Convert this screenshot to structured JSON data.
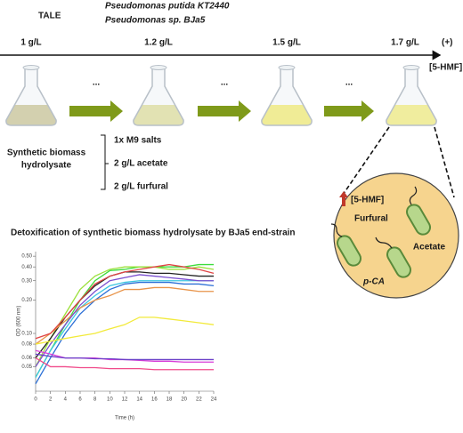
{
  "strains": {
    "tale": "TALE",
    "strain_1": "Pseudomonas putida KT2440",
    "strain_2": "Pseudomonas sp. BJa5"
  },
  "timeline": {
    "concentrations": [
      "1 g/L",
      "1.2 g/L",
      "1.5 g/L",
      "1.7 g/L"
    ],
    "plus": "(+)",
    "hmf": "[5-HMF]",
    "steps": [
      "...",
      "...",
      "..."
    ]
  },
  "medium": {
    "name_lines": [
      "Synthetic biomass",
      "hydrolysate"
    ],
    "components": [
      "1x M9 salts",
      "2 g/L acetate",
      "2 g/L furfural"
    ]
  },
  "cell_zoom": {
    "hmf": "[5-HMF]",
    "furfural": "Furfural",
    "acetate": "Acetate",
    "pca": "p-CA"
  },
  "chart_data": {
    "type": "line",
    "title": "Detoxification of synthetic biomass hydrolysate by BJa5 end-strain",
    "x_label": "Time (h)",
    "y_label": "OD (600 nm)",
    "log_y": true,
    "x": [
      0,
      2,
      4,
      6,
      8,
      10,
      12,
      14,
      16,
      18,
      20,
      22,
      24
    ],
    "xlim": [
      0,
      24
    ],
    "xticks": [
      0,
      2,
      4,
      6,
      8,
      10,
      12,
      14,
      16,
      18,
      20,
      22,
      24
    ],
    "ylim": [
      0.03,
      0.55
    ],
    "yticks": [
      0.05,
      0.06,
      0.08,
      {
        "value": 0.1,
        "label": "0.10"
      },
      {
        "value": 0.2,
        "label": "0.20"
      },
      {
        "value": 0.3,
        "label": "0.30"
      },
      {
        "value": 0.4,
        "label": "0.40"
      },
      {
        "value": 0.5,
        "label": "0.50"
      }
    ],
    "series": [
      {
        "color": "#3ddc3d",
        "values": [
          0.04,
          0.07,
          0.12,
          0.2,
          0.3,
          0.37,
          0.38,
          0.4,
          0.4,
          0.4,
          0.4,
          0.42,
          0.42
        ]
      },
      {
        "color": "#9be03a",
        "values": [
          0.05,
          0.09,
          0.15,
          0.25,
          0.33,
          0.38,
          0.4,
          0.4,
          0.4,
          0.38,
          0.38,
          0.4,
          0.38
        ]
      },
      {
        "color": "#222222",
        "values": [
          0.06,
          0.09,
          0.14,
          0.2,
          0.27,
          0.33,
          0.36,
          0.36,
          0.35,
          0.35,
          0.34,
          0.33,
          0.33
        ]
      },
      {
        "color": "#2b6fd6",
        "values": [
          0.035,
          0.06,
          0.1,
          0.15,
          0.2,
          0.25,
          0.28,
          0.29,
          0.29,
          0.29,
          0.28,
          0.28,
          0.27
        ]
      },
      {
        "color": "#3cc6e0",
        "values": [
          0.04,
          0.07,
          0.11,
          0.17,
          0.22,
          0.27,
          0.29,
          0.3,
          0.3,
          0.3,
          0.3,
          0.3,
          0.3
        ]
      },
      {
        "color": "#e8944a",
        "values": [
          0.08,
          0.1,
          0.13,
          0.17,
          0.2,
          0.22,
          0.25,
          0.25,
          0.26,
          0.26,
          0.25,
          0.24,
          0.24
        ]
      },
      {
        "color": "#7a4fd0",
        "values": [
          0.05,
          0.08,
          0.12,
          0.18,
          0.24,
          0.3,
          0.32,
          0.34,
          0.33,
          0.32,
          0.31,
          0.3,
          0.3
        ]
      },
      {
        "color": "#e04545",
        "values": [
          0.09,
          0.1,
          0.14,
          0.2,
          0.28,
          0.33,
          0.36,
          0.38,
          0.4,
          0.42,
          0.4,
          0.38,
          0.35
        ]
      },
      {
        "color": "#f2ea3a",
        "values": [
          0.08,
          0.085,
          0.09,
          0.095,
          0.1,
          0.11,
          0.12,
          0.14,
          0.14,
          0.135,
          0.13,
          0.125,
          0.12
        ]
      },
      {
        "color": "#d93fd9",
        "values": [
          0.07,
          0.065,
          0.06,
          0.06,
          0.06,
          0.058,
          0.058,
          0.057,
          0.056,
          0.056,
          0.055,
          0.055,
          0.055
        ]
      },
      {
        "color": "#6a3fc8",
        "values": [
          0.065,
          0.062,
          0.06,
          0.06,
          0.059,
          0.059,
          0.058,
          0.058,
          0.058,
          0.058,
          0.058,
          0.058,
          0.058
        ]
      },
      {
        "color": "#f04a8a",
        "values": [
          0.06,
          0.05,
          0.05,
          0.049,
          0.049,
          0.048,
          0.048,
          0.048,
          0.047,
          0.047,
          0.047,
          0.047,
          0.047
        ]
      }
    ]
  }
}
